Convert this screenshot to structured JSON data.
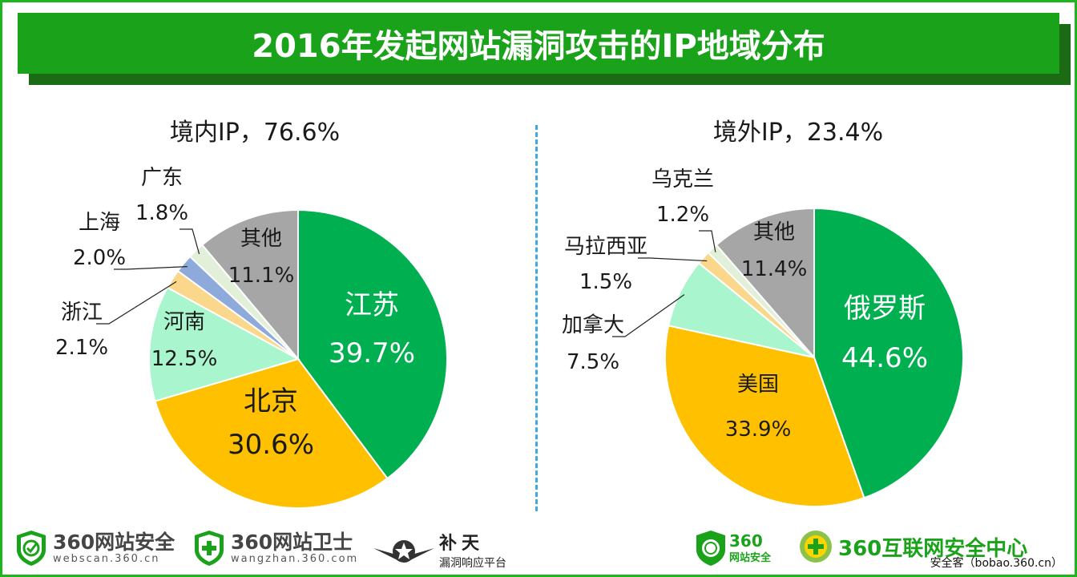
{
  "header": {
    "title": "2016年发起网站漏洞攻击的IP地域分布"
  },
  "chart_data": [
    {
      "type": "pie",
      "title": "境内IP，76.6%",
      "slices": [
        {
          "label": "江苏",
          "value": 39.7,
          "display": "39.7%",
          "color": "#00b050"
        },
        {
          "label": "北京",
          "value": 30.6,
          "display": "30.6%",
          "color": "#ffc000"
        },
        {
          "label": "河南",
          "value": 12.5,
          "display": "12.5%",
          "color": "#a9f5ce"
        },
        {
          "label": "浙江",
          "value": 2.1,
          "display": "2.1%",
          "color": "#fad78b"
        },
        {
          "label": "上海",
          "value": 2.0,
          "display": "2.0%",
          "color": "#8eaadb"
        },
        {
          "label": "广东",
          "value": 1.8,
          "display": "1.8%",
          "color": "#e2f0d9"
        },
        {
          "label": "其他",
          "value": 11.1,
          "display": "11.1%",
          "color": "#a6a6a6"
        }
      ]
    },
    {
      "type": "pie",
      "title": "境外IP，23.4%",
      "slices": [
        {
          "label": "俄罗斯",
          "value": 44.6,
          "display": "44.6%",
          "color": "#00b050"
        },
        {
          "label": "美国",
          "value": 33.9,
          "display": "33.9%",
          "color": "#ffc000"
        },
        {
          "label": "加拿大",
          "value": 7.5,
          "display": "7.5%",
          "color": "#a9f5ce"
        },
        {
          "label": "马拉西亚",
          "value": 1.5,
          "display": "1.5%",
          "color": "#fad78b"
        },
        {
          "label": "乌克兰",
          "value": 1.2,
          "display": "1.2%",
          "color": "#e2f0d9"
        },
        {
          "label": "其他",
          "value": 11.4,
          "display": "11.4%",
          "color": "#a6a6a6"
        }
      ]
    }
  ],
  "footer": {
    "logo1": {
      "name": "360网站安全",
      "url": "webscan.360.cn"
    },
    "logo2": {
      "name": "360网站卫士",
      "url": "wangzhan.360.com"
    },
    "logo3": {
      "name": "补天",
      "sub": "漏洞响应平台"
    },
    "logo4": {
      "name": "360",
      "sub": "网站安全"
    },
    "logo5": {
      "name": "360互联网安全中心"
    },
    "credit": "安全客（bobao.360.cn）"
  }
}
